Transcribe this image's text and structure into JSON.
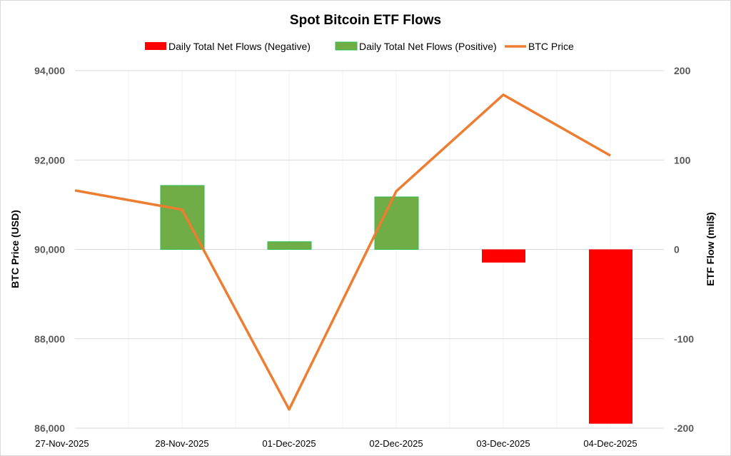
{
  "chart_data": {
    "type": "bar+line",
    "title": "Spot Bitcoin ETF Flows",
    "categories": [
      "27-Nov-2025",
      "28-Nov-2025",
      "01-Dec-2025",
      "02-Dec-2025",
      "03-Dec-2025",
      "04-Dec-2025"
    ],
    "series": [
      {
        "name": "Daily Total Net Flows (Negative)",
        "type": "bar",
        "axis": "right",
        "color": "#ff0000",
        "values": [
          0,
          0,
          0,
          0,
          -14.7,
          -195.0
        ]
      },
      {
        "name": "Daily Total Net Flows (Positive)",
        "type": "bar",
        "axis": "right",
        "color": "#70ad47",
        "values": [
          0,
          71.5,
          8.6,
          58.7,
          0,
          0
        ]
      },
      {
        "name": "BTC Price",
        "type": "line",
        "axis": "left",
        "color": "#ed7d31",
        "values": [
          91320,
          90890,
          86420,
          91300,
          93460,
          92100
        ]
      }
    ],
    "ylabel": "BTC Price (USD)",
    "ylabel_right": "ETF Flow (mil$)",
    "ylim": [
      86000,
      94000
    ],
    "ylim_right": [
      -200,
      200
    ],
    "yticks": [
      "86,000",
      "88,000",
      "90,000",
      "92,000",
      "94,000"
    ],
    "yticks_right": [
      "-200",
      "-100",
      "0",
      "100",
      "200"
    ],
    "grid": true,
    "legend_position": "top"
  }
}
